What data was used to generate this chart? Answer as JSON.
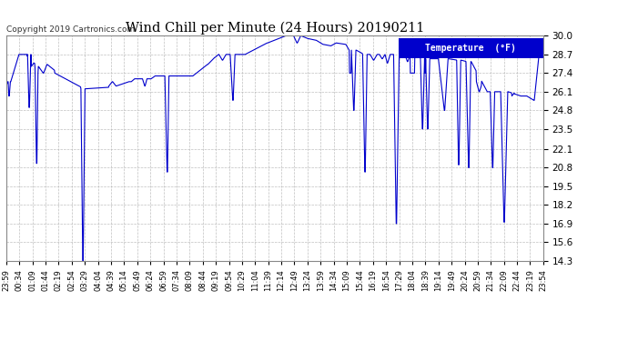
{
  "title": "Wind Chill per Minute (24 Hours) 20190211",
  "copyright": "Copyright 2019 Cartronics.com",
  "legend_label": "Temperature  (°F)",
  "legend_bg": "#0000cc",
  "legend_text_color": "#ffffff",
  "line_color": "#0000cc",
  "background_color": "#ffffff",
  "plot_bg_color": "#ffffff",
  "grid_color": "#b0b0b0",
  "title_color": "#000000",
  "yticks": [
    14.3,
    15.6,
    16.9,
    18.2,
    19.5,
    20.8,
    22.1,
    23.5,
    24.8,
    26.1,
    27.4,
    28.7,
    30.0
  ],
  "ylim": [
    14.3,
    30.0
  ],
  "xtick_labels": [
    "23:59",
    "00:34",
    "01:09",
    "01:44",
    "02:19",
    "02:54",
    "03:29",
    "04:04",
    "04:39",
    "05:14",
    "05:49",
    "06:24",
    "06:59",
    "07:34",
    "08:09",
    "08:44",
    "09:19",
    "09:54",
    "10:29",
    "11:04",
    "11:39",
    "12:14",
    "12:49",
    "13:24",
    "13:59",
    "14:34",
    "15:09",
    "15:44",
    "16:19",
    "16:54",
    "17:29",
    "18:04",
    "18:39",
    "19:14",
    "19:49",
    "20:24",
    "20:59",
    "21:34",
    "22:09",
    "22:44",
    "23:19",
    "23:54"
  ],
  "figsize": [
    6.9,
    3.75
  ],
  "dpi": 100
}
